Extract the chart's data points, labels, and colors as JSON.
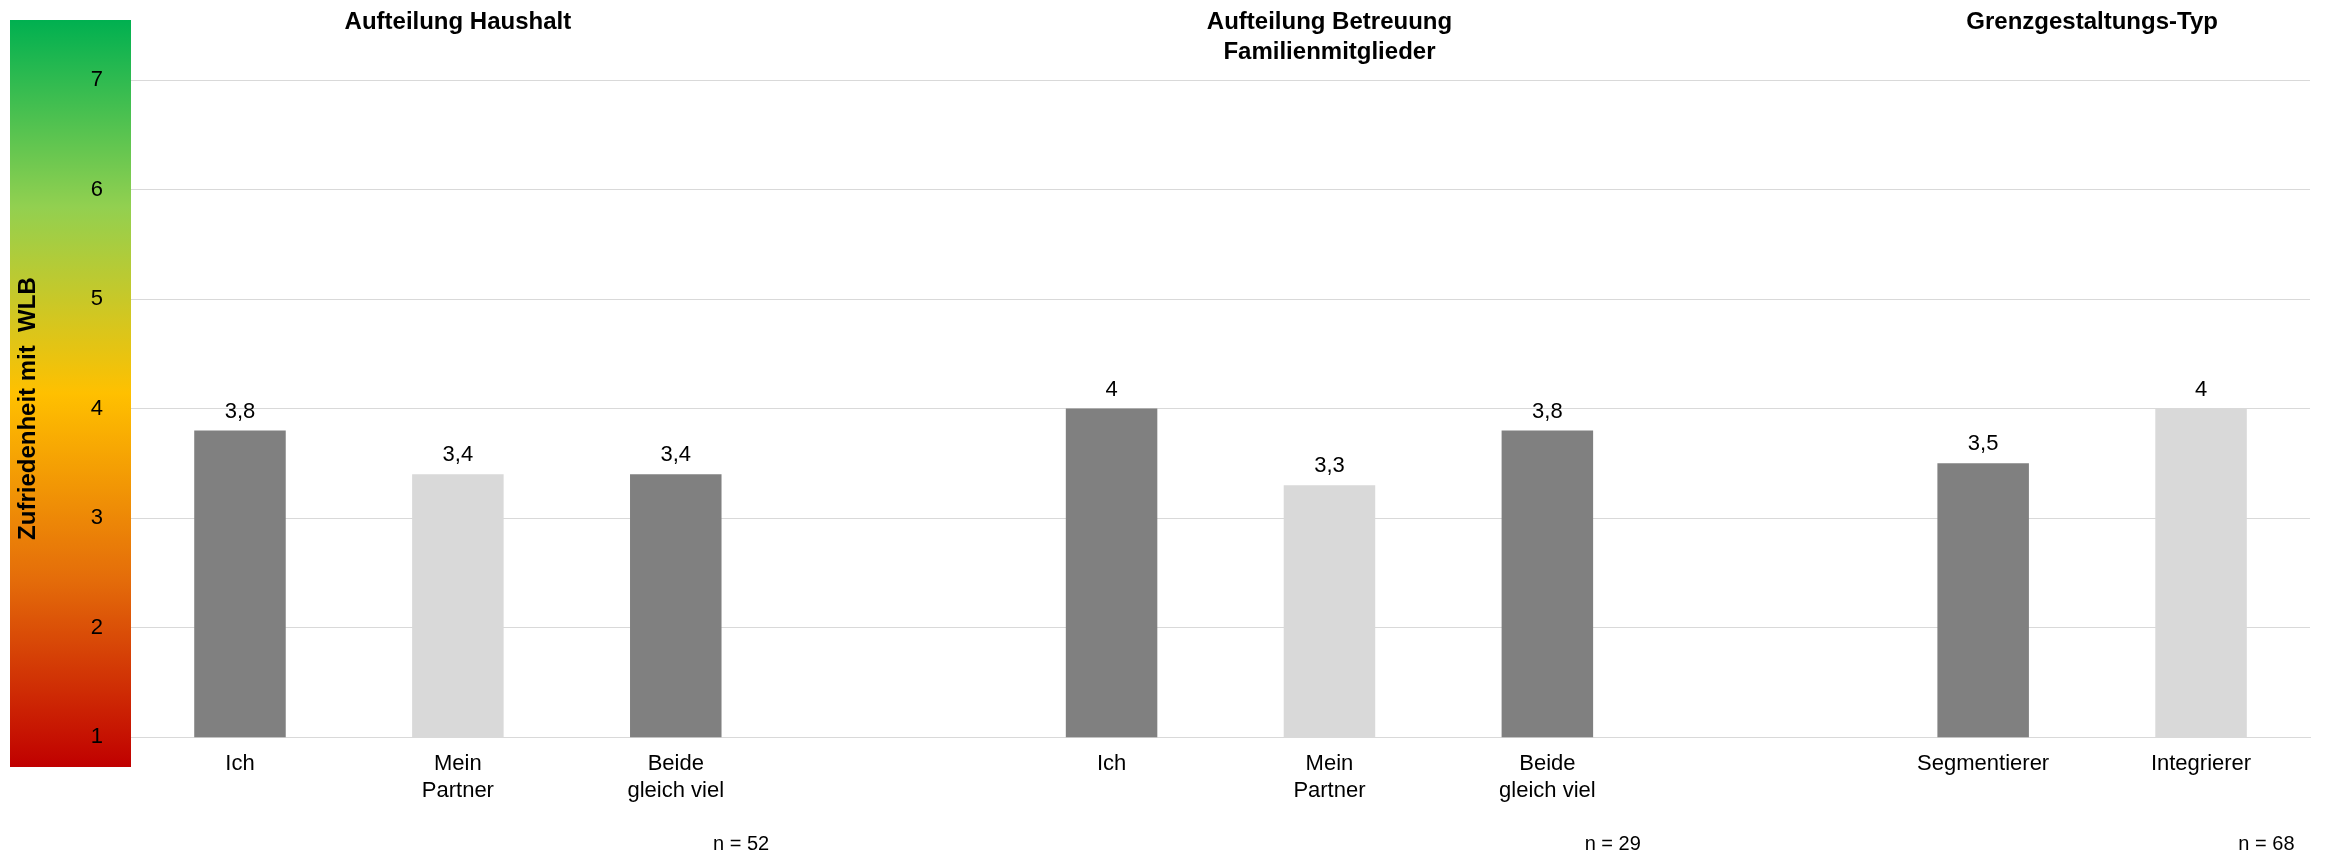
{
  "chart_data": {
    "type": "bar",
    "ylabel": "Zufriedenheit mit  WLB",
    "categories": [
      "Ich",
      "Mein Partner",
      "Beide gleich viel",
      null,
      "Ich",
      "Mein Partner",
      "Beide gleich viel",
      null,
      "Segmentierer",
      "Integrierer"
    ],
    "values": [
      3.8,
      3.4,
      3.4,
      null,
      4,
      3.3,
      3.8,
      null,
      3.5,
      4
    ],
    "colors": [
      "#808080",
      "#d9d9d9",
      "#808080",
      null,
      "#808080",
      "#d9d9d9",
      "#808080",
      null,
      "#808080",
      "#d9d9d9"
    ],
    "value_labels": [
      "3,8",
      "3,4",
      "3,4",
      null,
      "4",
      "3,3",
      "3,8",
      null,
      "3,5",
      "4"
    ],
    "ylim": [
      1,
      7
    ],
    "yticks": [
      1,
      2,
      3,
      4,
      5,
      6,
      7
    ],
    "grid": "y",
    "legend": false,
    "annotations": [
      "Aufteilung Haushalt",
      "Aufteilung Betreuung Familienmitglieder",
      "Grenzgestaltungs-Typ",
      "n = 52",
      "n = 29",
      "n = 68"
    ]
  }
}
